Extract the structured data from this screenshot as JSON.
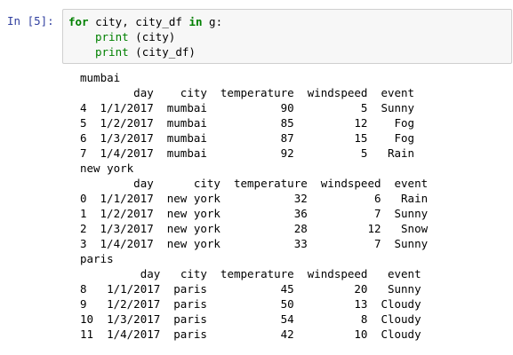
{
  "prompt": "In [5]:",
  "code": {
    "lines": [
      [
        "for",
        " city, city_df ",
        "in",
        " g:"
      ],
      [
        "print",
        " (city)"
      ],
      [
        "print",
        " (city_df)"
      ]
    ]
  },
  "output": [
    {
      "name": "mumbai",
      "columns": [
        "day",
        "city",
        "temperature",
        "windspeed",
        "event"
      ],
      "rows": [
        [
          4,
          "1/1/2017",
          "mumbai",
          90,
          5,
          "Sunny"
        ],
        [
          5,
          "1/2/2017",
          "mumbai",
          85,
          12,
          "Fog"
        ],
        [
          6,
          "1/3/2017",
          "mumbai",
          87,
          15,
          "Fog"
        ],
        [
          7,
          "1/4/2017",
          "mumbai",
          92,
          5,
          "Rain"
        ]
      ]
    },
    {
      "name": "new york",
      "columns": [
        "day",
        "city",
        "temperature",
        "windspeed",
        "event"
      ],
      "rows": [
        [
          0,
          "1/1/2017",
          "new york",
          32,
          6,
          "Rain"
        ],
        [
          1,
          "1/2/2017",
          "new york",
          36,
          7,
          "Sunny"
        ],
        [
          2,
          "1/3/2017",
          "new york",
          28,
          12,
          "Snow"
        ],
        [
          3,
          "1/4/2017",
          "new york",
          33,
          7,
          "Sunny"
        ]
      ]
    },
    {
      "name": "paris",
      "columns": [
        "day",
        "city",
        "temperature",
        "windspeed",
        "event"
      ],
      "rows": [
        [
          8,
          "1/1/2017",
          "paris",
          45,
          20,
          "Sunny"
        ],
        [
          9,
          "1/2/2017",
          "paris",
          50,
          13,
          "Cloudy"
        ],
        [
          10,
          "1/3/2017",
          "paris",
          54,
          8,
          "Cloudy"
        ],
        [
          11,
          "1/4/2017",
          "paris",
          42,
          10,
          "Cloudy"
        ]
      ]
    }
  ]
}
